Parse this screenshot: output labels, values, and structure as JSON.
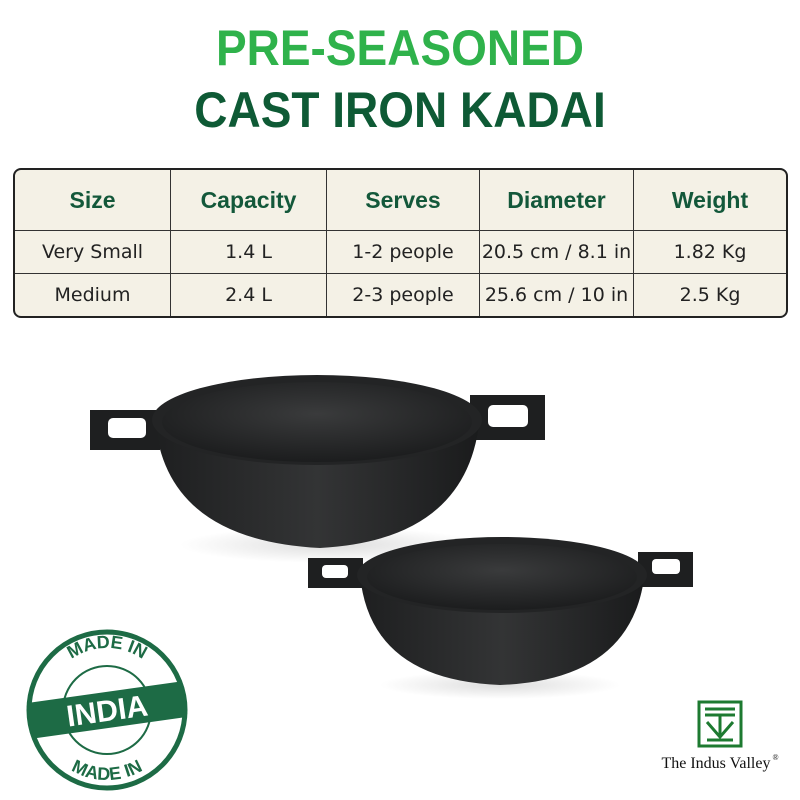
{
  "heading": {
    "line1": "PRE-SEASONED",
    "line2": "CAST IRON KADAI"
  },
  "colors": {
    "accent_green": "#2fb24b",
    "dark_green": "#0e5a35",
    "table_bg": "#f4f1e6"
  },
  "table": {
    "headers": [
      "Size",
      "Capacity",
      "Serves",
      "Diameter",
      "Weight"
    ],
    "rows": [
      [
        "Very Small",
        "1.4 L",
        "1-2 people",
        "20.5 cm / 8.1 in",
        "1.82 Kg"
      ],
      [
        "Medium",
        "2.4 L",
        "2-3 people",
        "25.6 cm / 10 in",
        "2.5 Kg"
      ]
    ]
  },
  "badge": {
    "top": "MADE IN",
    "center": "INDIA",
    "bottom": "MADE IN"
  },
  "brand": {
    "name": "The Indus Valley",
    "mark": "®"
  }
}
